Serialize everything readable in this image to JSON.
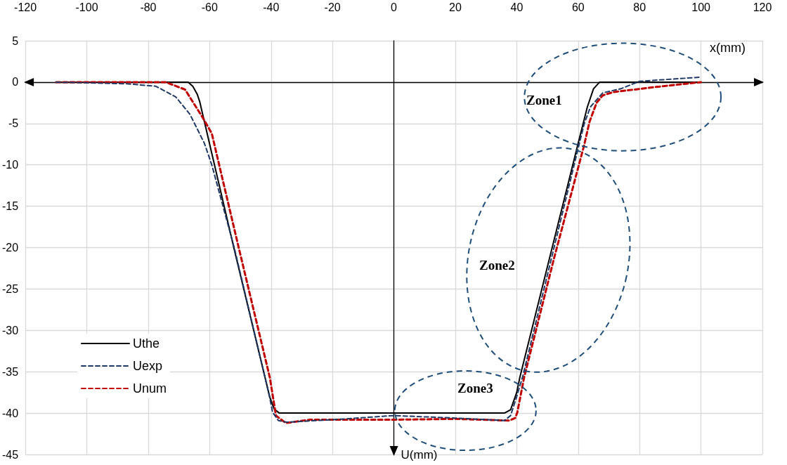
{
  "chart_data": {
    "type": "line",
    "xlabel": "x(mm)",
    "ylabel": "U(mm)",
    "xlim": [
      -120,
      120
    ],
    "xticks": [
      -120,
      -100,
      -80,
      -60,
      -40,
      -20,
      0,
      20,
      40,
      60,
      80,
      100,
      120
    ],
    "ylim": [
      -45,
      5
    ],
    "yticks": [
      -45,
      -40,
      -35,
      -30,
      -25,
      -20,
      -15,
      -10,
      -5,
      0,
      5
    ],
    "grid": true,
    "legend": "bottom left",
    "marker": "none",
    "series": [
      {
        "name": "Uthe",
        "color": "#000000",
        "line_style": "solid",
        "x": [
          -110,
          -67,
          -65.5,
          -64,
          -63.2,
          -52.2,
          -40.4,
          -39,
          -37.3,
          36,
          38,
          40,
          41,
          50,
          59.8,
          63,
          65,
          67,
          100
        ],
        "values": [
          0,
          0,
          -0.5,
          -1.5,
          -2.4,
          -19.9,
          -38.1,
          -39.5,
          -40,
          -40,
          -39.6,
          -37.5,
          -35.7,
          -22.3,
          -7.7,
          -3,
          -0.8,
          0,
          0
        ]
      },
      {
        "name": "Uexp",
        "color": "#1f3864",
        "line_style": "dashed",
        "x": [
          -110,
          -87,
          -77.5,
          -71,
          -66.4,
          -61.7,
          -59.3,
          -52,
          -40.5,
          -39.5,
          -37.6,
          -35,
          -20,
          0,
          20,
          36,
          38,
          40,
          42,
          60,
          62,
          64,
          68,
          73.9,
          80,
          100
        ],
        "values": [
          0,
          -0.2,
          -0.5,
          -1.8,
          -3.9,
          -7.4,
          -10,
          -20,
          -38,
          -39.9,
          -40.9,
          -41.1,
          -40.8,
          -40.3,
          -40.6,
          -40.9,
          -40.3,
          -38,
          -35.5,
          -8,
          -5,
          -3,
          -1.3,
          -0.8,
          0.1,
          0.6
        ]
      },
      {
        "name": "Unum",
        "color": "#c00000",
        "line_style": "dashed",
        "x": [
          -110,
          -74.3,
          -68,
          -62.4,
          -59.3,
          -56.9,
          -50.6,
          -40.4,
          -38.4,
          -35.2,
          -27.4,
          0,
          20,
          37.5,
          39.5,
          40.2,
          42.4,
          52,
          61.9,
          63.7,
          66,
          68,
          71.5,
          85,
          100
        ],
        "values": [
          0,
          0,
          -0.9,
          -4.2,
          -6.2,
          -10,
          -19.9,
          -35.7,
          -40.3,
          -41.2,
          -40.8,
          -40.8,
          -40.7,
          -40.9,
          -40.6,
          -39.9,
          -35.7,
          -21.5,
          -7.7,
          -4.8,
          -2.5,
          -1.6,
          -1.2,
          -0.6,
          0
        ]
      }
    ],
    "annotations": [
      "Zone1",
      "Zone2",
      "Zone3"
    ]
  }
}
